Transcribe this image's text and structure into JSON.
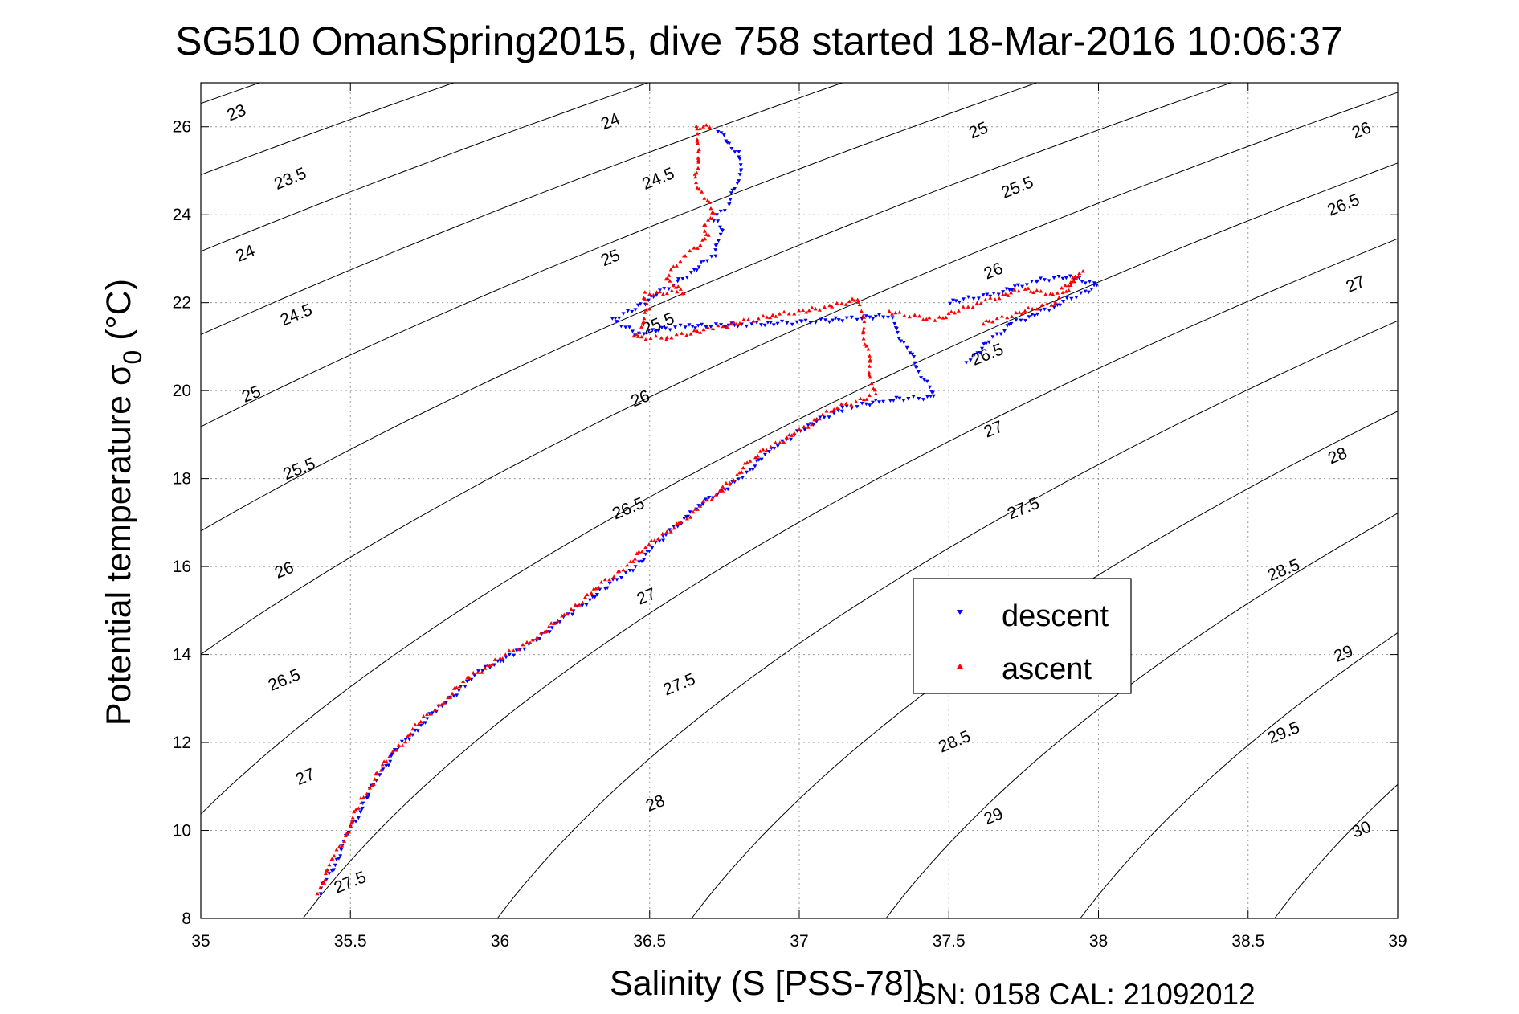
{
  "chart_data": {
    "type": "scatter",
    "title": "SG510 OmanSpring2015, dive 758 started 18-Mar-2016 10:06:37",
    "xlabel": "Salinity (S [PSS-78])",
    "ylabel_main": "Potential temperature σ",
    "ylabel_sub": "0",
    "ylabel_unit": " (°C)",
    "footer": "SN: 0158  CAL: 21092012",
    "xlim": [
      35,
      39
    ],
    "ylim": [
      8,
      27
    ],
    "x_ticks": [
      35,
      35.5,
      36,
      36.5,
      37,
      37.5,
      38,
      38.5,
      39
    ],
    "x_tick_labels": [
      "35",
      "35.5",
      "36",
      "36.5",
      "37",
      "37.5",
      "38",
      "38.5",
      "39"
    ],
    "y_ticks": [
      8,
      10,
      12,
      14,
      16,
      18,
      20,
      22,
      24,
      26
    ],
    "y_tick_labels": [
      "8",
      "10",
      "12",
      "14",
      "16",
      "18",
      "20",
      "22",
      "24",
      "26"
    ],
    "grid": true,
    "legend_position": "center-right",
    "density_contours": {
      "levels": [
        23,
        23.5,
        24,
        24.5,
        25,
        25.5,
        26,
        26.5,
        27,
        27.5,
        28,
        28.5,
        29,
        29.5,
        30
      ],
      "labels": [
        {
          "text": "23",
          "s": 35.12,
          "t": 26.3
        },
        {
          "text": "23.5",
          "s": 35.3,
          "t": 24.8
        },
        {
          "text": "24",
          "s": 35.15,
          "t": 23.1
        },
        {
          "text": "24.5",
          "s": 35.32,
          "t": 21.7
        },
        {
          "text": "25",
          "s": 35.17,
          "t": 19.9
        },
        {
          "text": "25.5",
          "s": 35.33,
          "t": 18.2
        },
        {
          "text": "26",
          "s": 35.28,
          "t": 15.9
        },
        {
          "text": "26.5",
          "s": 35.28,
          "t": 13.4
        },
        {
          "text": "27",
          "s": 35.35,
          "t": 11.2
        },
        {
          "text": "27.5",
          "s": 35.5,
          "t": 8.8
        },
        {
          "text": "24",
          "s": 36.37,
          "t": 26.1
        },
        {
          "text": "24.5",
          "s": 36.53,
          "t": 24.8
        },
        {
          "text": "25",
          "s": 36.37,
          "t": 23.0
        },
        {
          "text": "25.5",
          "s": 36.53,
          "t": 21.5
        },
        {
          "text": "26",
          "s": 36.47,
          "t": 19.8
        },
        {
          "text": "26.5",
          "s": 36.43,
          "t": 17.3
        },
        {
          "text": "27",
          "s": 36.49,
          "t": 15.3
        },
        {
          "text": "27.5",
          "s": 36.6,
          "t": 13.3
        },
        {
          "text": "28",
          "s": 36.52,
          "t": 10.6
        },
        {
          "text": "25",
          "s": 37.6,
          "t": 25.9
        },
        {
          "text": "25.5",
          "s": 37.73,
          "t": 24.6
        },
        {
          "text": "26",
          "s": 37.65,
          "t": 22.7
        },
        {
          "text": "26.5",
          "s": 37.63,
          "t": 20.8
        },
        {
          "text": "27",
          "s": 37.65,
          "t": 19.1
        },
        {
          "text": "27.5",
          "s": 37.75,
          "t": 17.3
        },
        {
          "text": "28.5",
          "s": 37.52,
          "t": 12.0
        },
        {
          "text": "29",
          "s": 37.65,
          "t": 10.3
        },
        {
          "text": "26",
          "s": 38.88,
          "t": 25.9
        },
        {
          "text": "26.5",
          "s": 38.82,
          "t": 24.2
        },
        {
          "text": "27",
          "s": 38.86,
          "t": 22.4
        },
        {
          "text": "28",
          "s": 38.8,
          "t": 18.5
        },
        {
          "text": "28.5",
          "s": 38.62,
          "t": 15.9
        },
        {
          "text": "29",
          "s": 38.82,
          "t": 14.0
        },
        {
          "text": "29.5",
          "s": 38.62,
          "t": 12.2
        },
        {
          "text": "30",
          "s": 38.88,
          "t": 10.0
        }
      ]
    },
    "series": [
      {
        "name": "descent",
        "color": "#0000ff",
        "marker": "triangle-down",
        "path": [
          [
            35.4,
            8.6
          ],
          [
            35.45,
            9.3
          ],
          [
            35.5,
            10.0
          ],
          [
            35.55,
            10.7
          ],
          [
            35.6,
            11.3
          ],
          [
            35.65,
            11.8
          ],
          [
            35.72,
            12.3
          ],
          [
            35.8,
            12.8
          ],
          [
            35.88,
            13.3
          ],
          [
            35.95,
            13.7
          ],
          [
            36.05,
            14.0
          ],
          [
            36.15,
            14.5
          ],
          [
            36.25,
            15.0
          ],
          [
            36.35,
            15.5
          ],
          [
            36.45,
            16.0
          ],
          [
            36.55,
            16.7
          ],
          [
            36.65,
            17.3
          ],
          [
            36.8,
            18.0
          ],
          [
            36.9,
            18.6
          ],
          [
            37.0,
            19.1
          ],
          [
            37.15,
            19.6
          ],
          [
            37.3,
            19.8
          ],
          [
            37.45,
            19.85
          ],
          [
            37.3,
            21.7
          ],
          [
            37.0,
            21.55
          ],
          [
            36.8,
            21.5
          ],
          [
            36.6,
            21.45
          ],
          [
            36.45,
            21.3
          ],
          [
            36.38,
            21.6
          ],
          [
            36.48,
            22.0
          ],
          [
            36.6,
            22.5
          ],
          [
            36.72,
            23.1
          ],
          [
            36.74,
            23.6
          ],
          [
            36.72,
            23.9
          ],
          [
            36.76,
            24.2
          ],
          [
            36.8,
            24.8
          ],
          [
            36.8,
            25.4
          ],
          [
            36.75,
            25.7
          ],
          [
            36.72,
            26.0
          ],
          [
            37.5,
            22.0
          ],
          [
            37.65,
            22.2
          ],
          [
            37.8,
            22.5
          ],
          [
            37.9,
            22.6
          ],
          [
            38.0,
            22.4
          ],
          [
            37.85,
            21.9
          ],
          [
            37.7,
            21.5
          ],
          [
            37.55,
            20.6
          ]
        ]
      },
      {
        "name": "ascent",
        "color": "#ff0000",
        "marker": "triangle-up",
        "path": [
          [
            35.39,
            8.6
          ],
          [
            35.44,
            9.3
          ],
          [
            35.49,
            10.0
          ],
          [
            35.54,
            10.7
          ],
          [
            35.6,
            11.4
          ],
          [
            35.66,
            11.9
          ],
          [
            35.74,
            12.5
          ],
          [
            35.82,
            13.0
          ],
          [
            35.9,
            13.5
          ],
          [
            36.0,
            13.9
          ],
          [
            36.12,
            14.4
          ],
          [
            36.22,
            14.9
          ],
          [
            36.3,
            15.4
          ],
          [
            36.4,
            15.9
          ],
          [
            36.5,
            16.5
          ],
          [
            36.62,
            17.1
          ],
          [
            36.75,
            17.8
          ],
          [
            36.85,
            18.5
          ],
          [
            37.0,
            19.1
          ],
          [
            37.12,
            19.6
          ],
          [
            37.25,
            19.9
          ],
          [
            37.2,
            22.1
          ],
          [
            37.1,
            21.9
          ],
          [
            36.9,
            21.7
          ],
          [
            36.7,
            21.4
          ],
          [
            36.55,
            21.2
          ],
          [
            36.45,
            21.2
          ],
          [
            36.5,
            21.9
          ],
          [
            36.48,
            22.2
          ],
          [
            36.62,
            22.25
          ],
          [
            36.55,
            22.5
          ],
          [
            36.62,
            23.1
          ],
          [
            36.7,
            23.5
          ],
          [
            36.68,
            23.8
          ],
          [
            36.72,
            24.0
          ],
          [
            36.68,
            24.4
          ],
          [
            36.65,
            24.9
          ],
          [
            36.67,
            25.5
          ],
          [
            36.65,
            26.0
          ],
          [
            36.72,
            26.0
          ],
          [
            37.3,
            21.8
          ],
          [
            37.45,
            21.6
          ],
          [
            37.6,
            22.0
          ],
          [
            37.75,
            22.3
          ],
          [
            37.85,
            22.2
          ],
          [
            37.95,
            22.7
          ],
          [
            37.85,
            22.0
          ],
          [
            37.6,
            21.5
          ]
        ]
      }
    ]
  }
}
